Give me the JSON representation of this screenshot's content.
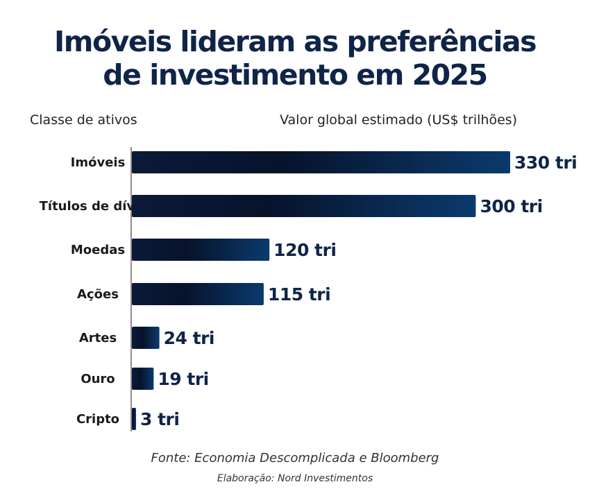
{
  "header": {
    "title_line1": "Imóveis lideram as preferências",
    "title_line2": "de investimento em 2025",
    "category_heading": "Classe de ativos",
    "value_heading": "Valor global estimado (US$ trilhões)"
  },
  "footer": {
    "source": "Fonte: Economia Descomplicada e Bloomberg",
    "credit": "Elaboração: Nord Investimentos"
  },
  "colors": {
    "bar_dark": "#07132b",
    "bar_light": "#0b3a6e",
    "text_dark": "#0f2447"
  },
  "chart_data": {
    "type": "bar",
    "orientation": "horizontal",
    "title": "Imóveis lideram as preferências de investimento em 2025",
    "xlabel": "Valor global estimado (US$ trilhões)",
    "ylabel": "Classe de ativos",
    "categories": [
      "Imóveis",
      "Títulos de dívida",
      "Moedas",
      "Ações",
      "Artes",
      "Ouro",
      "Cripto"
    ],
    "values": [
      330,
      300,
      120,
      115,
      24,
      19,
      3
    ],
    "value_labels": [
      "330 tri",
      "300 tri",
      "120 tri",
      "115 tri",
      "24 tri",
      "19 tri",
      "3 tri"
    ],
    "grid": false,
    "legend": "none"
  }
}
